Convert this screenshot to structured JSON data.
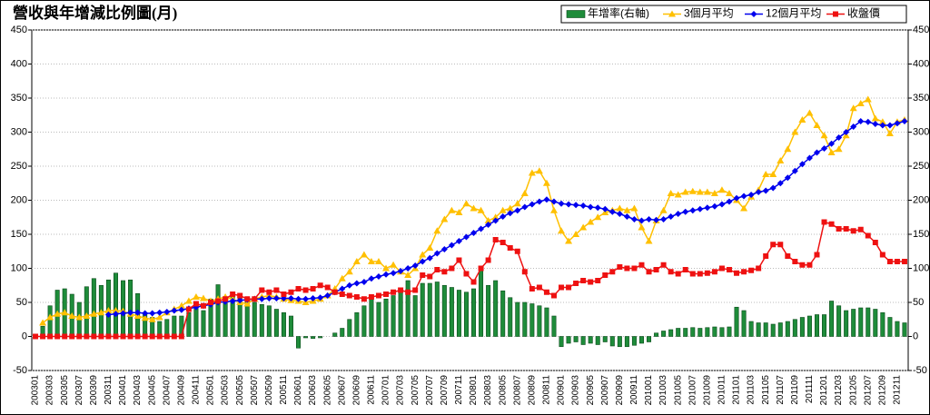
{
  "chart_data": {
    "type": "bar_line",
    "title": "營收與年增減比例圖(月)",
    "categories": [
      "200301",
      null,
      "200303",
      null,
      "200305",
      null,
      "200307",
      null,
      "200309",
      null,
      "200311",
      null,
      "200401",
      null,
      "200403",
      null,
      "200405",
      null,
      "200407",
      null,
      "200409",
      null,
      "200411",
      null,
      "200501",
      null,
      "200503",
      null,
      "200505",
      null,
      "200507",
      null,
      "200509",
      null,
      "200511",
      null,
      "200601",
      null,
      "200603",
      null,
      "200605",
      null,
      "200607",
      null,
      "200609",
      null,
      "200611",
      null,
      "200701",
      null,
      "200703",
      null,
      "200705",
      null,
      "200707",
      null,
      "200709",
      null,
      "200711",
      null,
      "200801",
      null,
      "200803",
      null,
      "200805",
      null,
      "200807",
      null,
      "200809",
      null,
      "200811",
      null,
      "200901",
      null,
      "200903",
      null,
      "200905",
      null,
      "200907",
      null,
      "200909",
      null,
      "200911",
      null,
      "201001",
      null,
      "201003",
      null,
      "201005",
      null,
      "201007",
      null,
      "201009",
      null,
      "201011",
      null,
      "201101",
      null,
      "201103",
      null,
      "201105",
      null,
      "201107",
      null,
      "201109",
      null,
      "201111",
      null,
      "201201",
      null,
      "201203",
      null,
      "201205",
      null,
      "201207",
      null,
      "201209",
      null,
      "201211",
      null
    ],
    "series": [
      {
        "name": "年增率(右軸)",
        "color": "#1e8c3a",
        "kind": "bar",
        "axis": "y2",
        "values": [
          0,
          15,
          45,
          68,
          70,
          62,
          50,
          73,
          85,
          75,
          83,
          93,
          82,
          83,
          63,
          35,
          28,
          22,
          25,
          30,
          30,
          35,
          45,
          38,
          55,
          76,
          55,
          60,
          58,
          55,
          50,
          47,
          45,
          40,
          35,
          30,
          -17,
          -2,
          -3,
          -2,
          0,
          5,
          12,
          25,
          35,
          45,
          55,
          50,
          55,
          60,
          65,
          82,
          60,
          78,
          78,
          80,
          75,
          72,
          68,
          65,
          70,
          98,
          75,
          82,
          67,
          57,
          50,
          50,
          48,
          45,
          42,
          30,
          -15,
          -10,
          -8,
          -12,
          -10,
          -12,
          -8,
          -14,
          -15,
          -15,
          -13,
          -10,
          -8,
          5,
          8,
          10,
          12,
          12,
          13,
          12,
          13,
          14,
          13,
          14,
          43,
          38,
          22,
          20,
          20,
          18,
          20,
          22,
          25,
          28,
          30,
          32,
          32,
          52,
          45,
          38,
          40,
          42,
          42,
          40,
          35,
          28,
          22,
          20
        ]
      },
      {
        "name": "3個月平均",
        "color": "#ffc000",
        "kind": "line",
        "marker": "triangle",
        "values": [
          null,
          20,
          28,
          33,
          35,
          30,
          28,
          30,
          33,
          35,
          38,
          38,
          37,
          33,
          30,
          27,
          25,
          28,
          35,
          40,
          45,
          52,
          58,
          56,
          52,
          55,
          58,
          55,
          50,
          48,
          55,
          58,
          60,
          58,
          55,
          53,
          52,
          50,
          52,
          55,
          60,
          70,
          85,
          95,
          110,
          120,
          110,
          110,
          100,
          105,
          95,
          90,
          100,
          120,
          130,
          155,
          172,
          185,
          182,
          195,
          188,
          185,
          170,
          175,
          185,
          188,
          195,
          210,
          240,
          243,
          225,
          185,
          155,
          140,
          150,
          160,
          168,
          175,
          182,
          185,
          188,
          185,
          188,
          160,
          140,
          170,
          185,
          210,
          208,
          212,
          213,
          212,
          212,
          210,
          215,
          210,
          200,
          188,
          205,
          215,
          238,
          238,
          258,
          275,
          300,
          318,
          328,
          310,
          295,
          270,
          275,
          295,
          335,
          342,
          348,
          320,
          315,
          298,
          315,
          318
        ]
      },
      {
        "name": "12個月平均",
        "color": "#0000ee",
        "kind": "line",
        "marker": "diamond",
        "values": [
          null,
          null,
          null,
          null,
          null,
          null,
          null,
          null,
          null,
          null,
          32,
          33,
          34,
          35,
          35,
          34,
          34,
          35,
          36,
          38,
          39,
          41,
          43,
          45,
          47,
          50,
          51,
          52,
          53,
          54,
          55,
          55,
          56,
          56,
          56,
          56,
          55,
          55,
          56,
          57,
          60,
          65,
          70,
          75,
          78,
          80,
          85,
          88,
          91,
          93,
          96,
          100,
          104,
          110,
          115,
          122,
          128,
          134,
          140,
          146,
          152,
          158,
          164,
          170,
          176,
          181,
          185,
          190,
          194,
          198,
          201,
          198,
          195,
          194,
          193,
          192,
          190,
          189,
          187,
          183,
          180,
          176,
          172,
          170,
          172,
          171,
          172,
          176,
          180,
          183,
          185,
          187,
          189,
          191,
          194,
          198,
          203,
          206,
          208,
          212,
          214,
          218,
          225,
          233,
          243,
          253,
          262,
          270,
          276,
          283,
          292,
          300,
          308,
          316,
          315,
          312,
          310,
          310,
          313,
          316
        ]
      },
      {
        "name": "收盤價",
        "color": "#ee1111",
        "kind": "line",
        "marker": "square",
        "values": [
          0,
          0,
          0,
          0,
          0,
          0,
          0,
          0,
          0,
          0,
          0,
          0,
          0,
          0,
          0,
          0,
          0,
          0,
          0,
          0,
          0,
          40,
          48,
          45,
          50,
          52,
          55,
          62,
          60,
          55,
          55,
          68,
          65,
          68,
          62,
          65,
          70,
          68,
          70,
          75,
          72,
          65,
          62,
          60,
          58,
          55,
          58,
          60,
          62,
          65,
          68,
          65,
          68,
          90,
          88,
          98,
          95,
          100,
          112,
          92,
          80,
          100,
          112,
          142,
          138,
          130,
          125,
          95,
          70,
          72,
          65,
          60,
          72,
          72,
          78,
          82,
          80,
          82,
          90,
          95,
          102,
          100,
          100,
          105,
          95,
          98,
          105,
          95,
          92,
          98,
          92,
          92,
          93,
          95,
          100,
          98,
          93,
          95,
          97,
          100,
          118,
          135,
          135,
          118,
          110,
          105,
          105,
          120,
          168,
          165,
          158,
          158,
          155,
          157,
          148,
          138,
          120,
          110,
          110,
          110
        ]
      }
    ],
    "ylim": [
      -50,
      450
    ],
    "yticks": [
      -50,
      0,
      50,
      100,
      150,
      200,
      250,
      300,
      350,
      400,
      450
    ],
    "y2lim": [
      -50,
      450
    ],
    "y2ticks": [
      -50,
      0,
      50,
      100,
      150,
      200,
      250,
      300,
      350,
      400,
      450
    ],
    "grid": true,
    "legend": "top-right"
  }
}
